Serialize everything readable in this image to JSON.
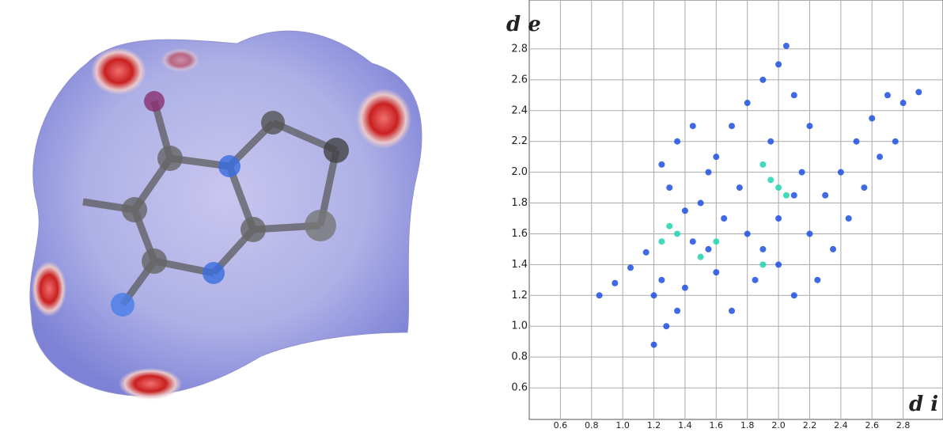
{
  "chart_data": {
    "type": "scatter",
    "x_label": "d i",
    "y_label": "d e",
    "xlim": [
      0.4,
      3.0
    ],
    "ylim": [
      0.4,
      3.0
    ],
    "xticks": [
      0.6,
      0.8,
      {
        "value": 1.0,
        "label": "1.0"
      },
      1.2,
      1.4,
      1.6,
      1.8,
      {
        "value": 2.0,
        "label": "2.0"
      },
      2.2,
      2.4,
      2.6,
      2.8
    ],
    "yticks": [
      0.6,
      0.8,
      {
        "value": 1.0,
        "label": "1.0"
      },
      1.2,
      1.4,
      1.6,
      1.8,
      {
        "value": 2.0,
        "label": "2.0"
      },
      2.2,
      2.4,
      2.6,
      2.8
    ],
    "grid": true,
    "series": [
      {
        "color": "#1f4fe0",
        "x": [
          0.85,
          0.95,
          1.05,
          1.15,
          1.2,
          1.25,
          1.2,
          1.28,
          1.35,
          1.4,
          1.3,
          1.25,
          1.35,
          1.45,
          1.5,
          1.55,
          1.6,
          1.6,
          1.7,
          1.75,
          1.8,
          1.85,
          1.8,
          1.9,
          1.95,
          2.0,
          2.0,
          2.0,
          2.05,
          2.1,
          2.15,
          2.2,
          2.2,
          2.25,
          2.3,
          2.35,
          2.4,
          2.45,
          2.5,
          2.55,
          2.6,
          2.65,
          2.7,
          2.8,
          2.9,
          2.75,
          1.7,
          1.55,
          1.45,
          2.1,
          1.65,
          1.9,
          2.1,
          1.4
        ],
        "values": [
          1.2,
          1.28,
          1.38,
          1.48,
          1.2,
          1.3,
          0.88,
          1.0,
          1.1,
          1.25,
          1.9,
          2.05,
          2.2,
          2.3,
          1.8,
          1.5,
          1.35,
          2.1,
          2.3,
          1.9,
          1.6,
          1.3,
          2.45,
          2.6,
          2.2,
          1.7,
          1.4,
          2.7,
          2.82,
          2.5,
          2.0,
          1.6,
          2.3,
          1.3,
          1.85,
          1.5,
          2.0,
          1.7,
          2.2,
          1.9,
          2.35,
          2.1,
          2.5,
          2.45,
          2.52,
          2.2,
          1.1,
          2.0,
          1.55,
          1.2,
          1.7,
          1.5,
          1.85,
          1.75
        ]
      },
      {
        "color": "#22d3b0",
        "x": [
          1.3,
          1.35,
          1.9,
          1.95,
          2.0,
          2.05,
          1.6,
          1.5,
          1.25,
          1.9
        ],
        "values": [
          1.65,
          1.6,
          2.05,
          1.95,
          1.9,
          1.85,
          1.55,
          1.45,
          1.55,
          1.4
        ]
      }
    ]
  }
}
